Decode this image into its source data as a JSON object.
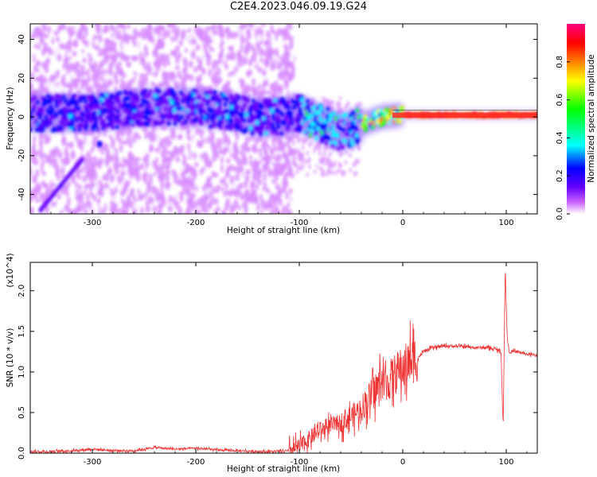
{
  "title": "C2E4.2023.046.09.19.G24",
  "chart_data": [
    {
      "type": "heatmap",
      "xlabel": "Height of straight line (km)",
      "ylabel": "Frequency (Hz)",
      "xlim": [
        -360,
        130
      ],
      "ylim": [
        -50,
        48
      ],
      "x_ticks": [
        -300,
        -200,
        -100,
        0,
        100
      ],
      "x_tick_labels": [
        "-300",
        "-200",
        "-100",
        "0",
        "100"
      ],
      "y_ticks": [
        -40,
        -20,
        0,
        20,
        40
      ],
      "y_tick_labels": [
        "-40",
        "-20",
        "0",
        "20",
        "40"
      ],
      "colorbar": {
        "label": "Normalized spectral amplitude",
        "range": [
          0,
          1
        ],
        "ticks": [
          0.0,
          0.2,
          0.4,
          0.6,
          0.8
        ],
        "tick_labels": [
          "0.0",
          "0.2",
          "0.4",
          "0.6",
          "0.8"
        ],
        "colormap": [
          "#ffffff",
          "#cc66ff",
          "#6600ff",
          "#0000ff",
          "#00ffff",
          "#00ff00",
          "#ffff00",
          "#ff8000",
          "#ff0000",
          "#ff0080"
        ]
      },
      "features": [
        {
          "desc": "main spectral ridge (frequency centre vs height)",
          "x": [
            -300,
            -250,
            -200,
            -170,
            -140,
            -120,
            -100,
            -80,
            -60,
            -40,
            -20,
            0,
            50,
            90,
            130
          ],
          "y": [
            2,
            5,
            5,
            3,
            0,
            0,
            2,
            -3,
            -8,
            -4,
            0,
            1,
            1,
            1,
            1
          ]
        },
        {
          "desc": "diagonal streak",
          "x": [
            -350,
            -310
          ],
          "y": [
            -48,
            -22
          ]
        },
        {
          "desc": "isolated patch",
          "x": [
            -293
          ],
          "y": [
            -14
          ]
        }
      ]
    },
    {
      "type": "line",
      "xlabel": "Height of straight line (km)",
      "ylabel": "SNR (10 * v/v)",
      "y_multiplier": "(x10^4)",
      "xlim": [
        -360,
        130
      ],
      "ylim": [
        0,
        2.35
      ],
      "x_ticks": [
        -300,
        -200,
        -100,
        0,
        100
      ],
      "x_tick_labels": [
        "-300",
        "-200",
        "-100",
        "0",
        "100"
      ],
      "y_ticks": [
        0.0,
        0.5,
        1.0,
        1.5,
        2.0
      ],
      "y_tick_labels": [
        "0.0",
        "0.5",
        "1.0",
        "1.5",
        "2.0"
      ],
      "color": "#ee3333",
      "x": [
        -360,
        -340,
        -320,
        -300,
        -280,
        -260,
        -240,
        -220,
        -200,
        -180,
        -160,
        -140,
        -120,
        -110,
        -100,
        -90,
        -80,
        -70,
        -60,
        -50,
        -40,
        -35,
        -30,
        -25,
        -20,
        -15,
        -10,
        -5,
        0,
        5,
        10,
        15,
        20,
        30,
        40,
        50,
        60,
        70,
        80,
        90,
        95,
        97,
        99,
        101,
        103,
        110,
        120,
        130
      ],
      "y": [
        0.02,
        0.02,
        0.03,
        0.05,
        0.03,
        0.03,
        0.07,
        0.05,
        0.06,
        0.04,
        0.03,
        0.02,
        0.02,
        0.03,
        0.08,
        0.18,
        0.28,
        0.34,
        0.38,
        0.45,
        0.55,
        0.65,
        0.72,
        0.8,
        0.9,
        0.85,
        0.95,
        1.0,
        1.05,
        1.1,
        1.15,
        1.18,
        1.25,
        1.3,
        1.32,
        1.32,
        1.31,
        1.3,
        1.3,
        1.28,
        1.25,
        0.3,
        2.3,
        1.4,
        1.25,
        1.25,
        1.22,
        1.2
      ]
    }
  ]
}
